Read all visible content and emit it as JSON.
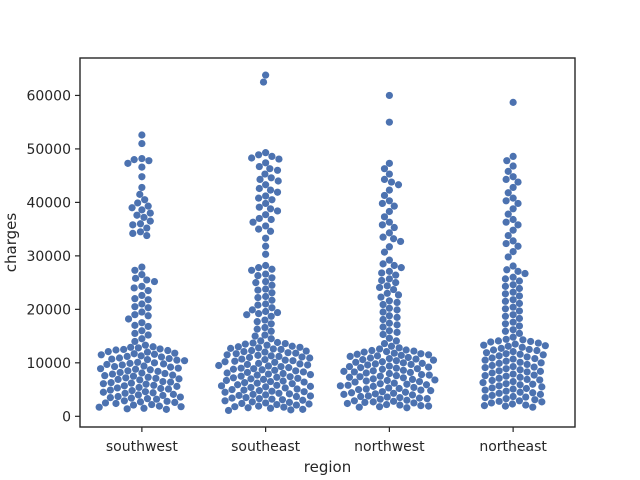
{
  "chart_data": {
    "type": "scatter",
    "subtype": "swarm",
    "title": "",
    "xlabel": "region",
    "ylabel": "charges",
    "categories": [
      "southwest",
      "southeast",
      "northwest",
      "northeast"
    ],
    "ylim": [
      -2000,
      67000
    ],
    "yticks": [
      0,
      10000,
      20000,
      30000,
      40000,
      50000,
      60000
    ],
    "ytick_labels": [
      "0",
      "10000",
      "20000",
      "30000",
      "40000",
      "50000",
      "60000"
    ],
    "marker_color": "#4c72b0",
    "grid": false,
    "legend": "none",
    "series": [
      {
        "category": "southwest",
        "values": [
          1300,
          1700,
          2100,
          2500,
          2900,
          3300,
          3700,
          4100,
          4500,
          4900,
          5300,
          5700,
          6100,
          6500,
          6900,
          7300,
          7700,
          8100,
          8500,
          8900,
          9300,
          9700,
          10100,
          10500,
          10900,
          11300,
          11700,
          12100,
          12500,
          13000,
          1400,
          1900,
          2400,
          2800,
          3200,
          3600,
          4000,
          4400,
          4800,
          5200,
          5600,
          6000,
          6400,
          6800,
          7200,
          7600,
          8000,
          8400,
          8800,
          9200,
          9600,
          10000,
          10400,
          10800,
          11200,
          11600,
          12000,
          12400,
          12800,
          13300,
          1500,
          2200,
          2700,
          3400,
          3900,
          4600,
          5100,
          5800,
          6300,
          7000,
          7500,
          8200,
          8700,
          9400,
          9900,
          10600,
          11100,
          11800,
          12300,
          12900,
          1800,
          2600,
          3500,
          4300,
          5400,
          6200,
          7100,
          7900,
          9000,
          9800,
          10700,
          11500,
          12600,
          14000,
          14500,
          15200,
          16000,
          16800,
          17500,
          18200,
          19000,
          19500,
          20300,
          21000,
          21800,
          22600,
          23500,
          24300,
          25200,
          25800,
          26500,
          27300,
          27900,
          15500,
          17000,
          18800,
          20500,
          22000,
          24000,
          25500,
          33800,
          34500,
          35200,
          35800,
          36500,
          37200,
          38000,
          38600,
          39300,
          39900,
          40500,
          34200,
          36000,
          37600,
          39000,
          41500,
          42800,
          44800,
          46600,
          47300,
          47800,
          48000,
          48200,
          51000,
          52600
        ]
      },
      {
        "category": "southeast",
        "values": [
          1100,
          1500,
          1900,
          2300,
          2700,
          3100,
          3500,
          3900,
          4300,
          4700,
          5100,
          5500,
          5900,
          6300,
          6700,
          7100,
          7500,
          7900,
          8300,
          8700,
          9100,
          9500,
          9900,
          10300,
          10700,
          11100,
          11500,
          11900,
          12300,
          12700,
          13100,
          13500,
          1200,
          1700,
          2100,
          2500,
          2900,
          3300,
          3700,
          4100,
          4500,
          4900,
          5300,
          5700,
          6100,
          6500,
          6900,
          7300,
          7700,
          8100,
          8500,
          8900,
          9300,
          9700,
          10100,
          10500,
          10900,
          11300,
          11700,
          12100,
          12500,
          12900,
          13300,
          13800,
          1300,
          1800,
          2200,
          2600,
          3000,
          3400,
          3800,
          4200,
          4600,
          5000,
          5400,
          5800,
          6200,
          6600,
          7000,
          7400,
          7800,
          8200,
          8600,
          9000,
          9400,
          9800,
          10200,
          10600,
          11000,
          11400,
          11800,
          12200,
          12600,
          13000,
          13600,
          14100,
          1600,
          2400,
          3200,
          4000,
          4800,
          5600,
          6400,
          7200,
          8000,
          8800,
          9600,
          10400,
          11200,
          12000,
          12800,
          13700,
          14500,
          15200,
          15900,
          16600,
          17300,
          18000,
          18700,
          19200,
          19600,
          19900,
          20300,
          21000,
          21700,
          22400,
          23100,
          23800,
          24500,
          25200,
          25900,
          26600,
          27300,
          27800,
          28200,
          15000,
          16300,
          17700,
          19000,
          19400,
          20800,
          22200,
          23600,
          25000,
          26300,
          27500,
          30300,
          31800,
          33300,
          34600,
          35600,
          36300,
          37000,
          37700,
          38400,
          39100,
          39800,
          40500,
          41200,
          41900,
          42600,
          43300,
          44000,
          44600,
          45300,
          46000,
          46700,
          47400,
          48100,
          48600,
          48900,
          49300,
          35000,
          36800,
          38800,
          40800,
          42300,
          44300,
          46300,
          48300,
          62500,
          63800
        ]
      },
      {
        "category": "northwest",
        "values": [
          1600,
          2000,
          2400,
          2800,
          3200,
          3600,
          4000,
          4400,
          4800,
          5200,
          5600,
          6000,
          6400,
          6800,
          7200,
          7600,
          8000,
          8400,
          8800,
          9200,
          9600,
          10000,
          10400,
          10800,
          11200,
          11600,
          12000,
          12400,
          1700,
          2100,
          2500,
          2900,
          3300,
          3700,
          4100,
          4500,
          4900,
          5300,
          5700,
          6100,
          6500,
          6900,
          7300,
          7700,
          8100,
          8500,
          8900,
          9300,
          9700,
          10100,
          10500,
          10900,
          11300,
          11700,
          12100,
          12600,
          1800,
          2200,
          2600,
          3000,
          3400,
          3800,
          4200,
          4600,
          5000,
          5400,
          5800,
          6200,
          6600,
          7000,
          7400,
          7800,
          8200,
          8600,
          9000,
          9400,
          9800,
          10200,
          10600,
          11000,
          11400,
          11800,
          12200,
          12800,
          1900,
          2700,
          3500,
          4300,
          5100,
          5900,
          6700,
          7500,
          8300,
          9100,
          9900,
          10700,
          11500,
          12300,
          13100,
          13600,
          14100,
          14600,
          15300,
          16000,
          16700,
          17400,
          18100,
          18800,
          19500,
          20200,
          20900,
          21600,
          22300,
          23000,
          23700,
          24400,
          25000,
          25700,
          26400,
          27100,
          27800,
          28500,
          29200,
          15700,
          17100,
          18500,
          19900,
          21300,
          22700,
          24100,
          25400,
          26800,
          28200,
          30700,
          31700,
          32700,
          33500,
          34300,
          35300,
          36300,
          37300,
          38300,
          39300,
          40300,
          41300,
          42300,
          43300,
          44300,
          45300,
          46300,
          47300,
          33200,
          35800,
          39800,
          43800,
          55000,
          60000
        ]
      },
      {
        "category": "northeast",
        "values": [
          1700,
          2100,
          2500,
          2900,
          3300,
          3700,
          4100,
          4500,
          4900,
          5300,
          5700,
          6100,
          6500,
          6900,
          7300,
          7700,
          8100,
          8500,
          8900,
          9300,
          9700,
          10100,
          10500,
          10900,
          11300,
          11700,
          12100,
          12500,
          12900,
          13300,
          13700,
          14100,
          1900,
          2300,
          2700,
          3100,
          3500,
          3900,
          4300,
          4700,
          5100,
          5500,
          5900,
          6300,
          6700,
          7100,
          7500,
          7900,
          8300,
          8700,
          9100,
          9500,
          9900,
          10300,
          10700,
          11100,
          11500,
          11900,
          12300,
          12700,
          13100,
          13500,
          13900,
          14300,
          2000,
          2800,
          3600,
          4400,
          5200,
          6000,
          6800,
          7600,
          8400,
          9200,
          10000,
          10800,
          11600,
          12400,
          13200,
          14000,
          14400,
          14800,
          15500,
          16200,
          16900,
          17600,
          18300,
          19000,
          19700,
          20400,
          21100,
          21800,
          22500,
          23200,
          23900,
          24600,
          25300,
          26000,
          26700,
          27400,
          28100,
          15900,
          17300,
          18700,
          20100,
          21500,
          22900,
          24300,
          25700,
          27100,
          29800,
          30800,
          31800,
          32800,
          33800,
          34800,
          35800,
          36800,
          37800,
          38800,
          39800,
          40800,
          41800,
          42800,
          43800,
          44800,
          45800,
          46800,
          47800,
          48600,
          32300,
          36300,
          40300,
          44300,
          58700
        ]
      }
    ]
  }
}
